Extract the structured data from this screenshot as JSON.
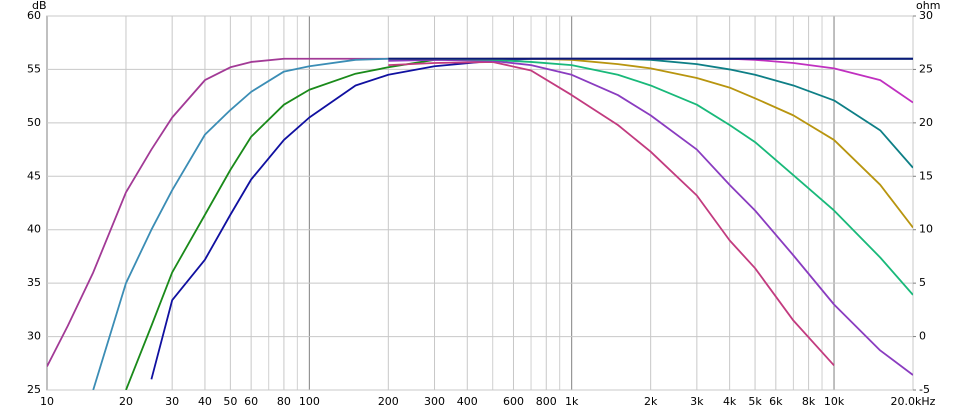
{
  "chart_data": {
    "type": "line",
    "y_label": "dB",
    "y2_label": "ohm",
    "log_x": true,
    "grid": true,
    "xlim": [
      10,
      20000
    ],
    "xticks": [
      10,
      20,
      30,
      40,
      50,
      60,
      80,
      100,
      200,
      300,
      400,
      600,
      800,
      {
        "value": 1000,
        "label": "1k"
      },
      {
        "value": 2000,
        "label": "2k"
      },
      {
        "value": 3000,
        "label": "3k"
      },
      {
        "value": 4000,
        "label": "4k"
      },
      {
        "value": 5000,
        "label": "5k"
      },
      {
        "value": 6000,
        "label": "6k"
      },
      {
        "value": 8000,
        "label": "8k"
      },
      {
        "value": 10000,
        "label": "10k"
      },
      {
        "value": 20000,
        "label": "20.0kHz"
      }
    ],
    "xgrid_minor": [
      70,
      90,
      500,
      700,
      900,
      7000,
      9000
    ],
    "ylim": [
      25,
      60
    ],
    "yticks": [
      25,
      30,
      35,
      40,
      45,
      50,
      55,
      60
    ],
    "y2lim": [
      -5,
      30
    ],
    "y2ticks": [
      -5,
      0,
      5,
      10,
      15,
      20,
      25,
      30
    ],
    "x": [
      10,
      12,
      15,
      20,
      25,
      30,
      40,
      50,
      60,
      80,
      100,
      150,
      200,
      300,
      500,
      700,
      1000,
      1500,
      2000,
      3000,
      4000,
      5000,
      7000,
      10000,
      15000,
      20000
    ],
    "series": [
      {
        "color": "#a23a96",
        "values": [
          27.2,
          31,
          36,
          43.5,
          47.5,
          50.5,
          54,
          55.2,
          55.7,
          56,
          56,
          56,
          56,
          56,
          56,
          56,
          56,
          56,
          56,
          56,
          56,
          56,
          56,
          56,
          56,
          56
        ]
      },
      {
        "color": "#3b8db5",
        "values": [
          null,
          null,
          25,
          35,
          40,
          43.7,
          48.9,
          51.2,
          52.9,
          54.8,
          55.3,
          55.9,
          56,
          56,
          56,
          56,
          56,
          56,
          56,
          56,
          56,
          56,
          56,
          56,
          56,
          56
        ]
      },
      {
        "color": "#1a8a1a",
        "values": [
          null,
          null,
          null,
          25,
          31,
          36,
          41.4,
          45.6,
          48.7,
          51.7,
          53.1,
          54.6,
          55.2,
          55.9,
          56,
          56,
          56,
          56,
          56,
          56,
          56,
          56,
          56,
          56,
          56,
          56
        ]
      },
      {
        "color": "#1010a0",
        "values": [
          null,
          null,
          null,
          null,
          26,
          33.4,
          37.2,
          41.4,
          44.7,
          48.4,
          50.5,
          53.5,
          54.5,
          55.3,
          55.8,
          56,
          56,
          56,
          56,
          56,
          56,
          56,
          56,
          56,
          56,
          56
        ]
      },
      {
        "color": "#c23b7f",
        "values": [
          null,
          null,
          null,
          null,
          null,
          null,
          null,
          null,
          null,
          null,
          null,
          null,
          55.4,
          55.6,
          55.7,
          54.9,
          52.6,
          49.8,
          47.3,
          43.2,
          39,
          36.4,
          31.5,
          27.3,
          null,
          null
        ]
      },
      {
        "color": "#8a3cc0",
        "values": [
          null,
          null,
          null,
          null,
          null,
          null,
          null,
          null,
          null,
          null,
          null,
          null,
          55.8,
          55.9,
          55.8,
          55.4,
          54.5,
          52.6,
          50.7,
          47.5,
          44.2,
          41.8,
          37.6,
          33,
          28.7,
          26.4
        ]
      },
      {
        "color": "#19b97a",
        "values": [
          null,
          null,
          null,
          null,
          null,
          null,
          null,
          null,
          null,
          null,
          null,
          null,
          56,
          56,
          55.9,
          55.7,
          55.4,
          54.5,
          53.5,
          51.7,
          49.8,
          48.2,
          45.1,
          41.8,
          37.4,
          33.9
        ]
      },
      {
        "color": "#b8950f",
        "values": [
          null,
          null,
          null,
          null,
          null,
          null,
          null,
          null,
          null,
          null,
          null,
          null,
          56,
          56,
          56,
          56,
          55.9,
          55.5,
          55.1,
          54.2,
          53.3,
          52.3,
          50.7,
          48.4,
          44.2,
          40.2
        ]
      },
      {
        "color": "#0e7f86",
        "values": [
          null,
          null,
          null,
          null,
          null,
          null,
          null,
          null,
          null,
          null,
          null,
          null,
          56,
          56,
          56,
          56,
          56,
          56,
          55.9,
          55.5,
          55,
          54.5,
          53.5,
          52.1,
          49.3,
          45.8
        ]
      },
      {
        "color": "#c030c0",
        "values": [
          null,
          null,
          null,
          null,
          null,
          null,
          null,
          null,
          null,
          null,
          null,
          null,
          56,
          56,
          56,
          56,
          56,
          56,
          56,
          56,
          56,
          55.9,
          55.6,
          55.1,
          54,
          51.9
        ]
      },
      {
        "color": "#0a1a7a",
        "values": [
          null,
          null,
          null,
          null,
          null,
          null,
          null,
          null,
          null,
          null,
          null,
          null,
          56,
          56,
          56,
          56,
          56,
          56,
          56,
          56,
          56,
          56,
          56,
          56,
          56,
          56
        ]
      }
    ]
  }
}
